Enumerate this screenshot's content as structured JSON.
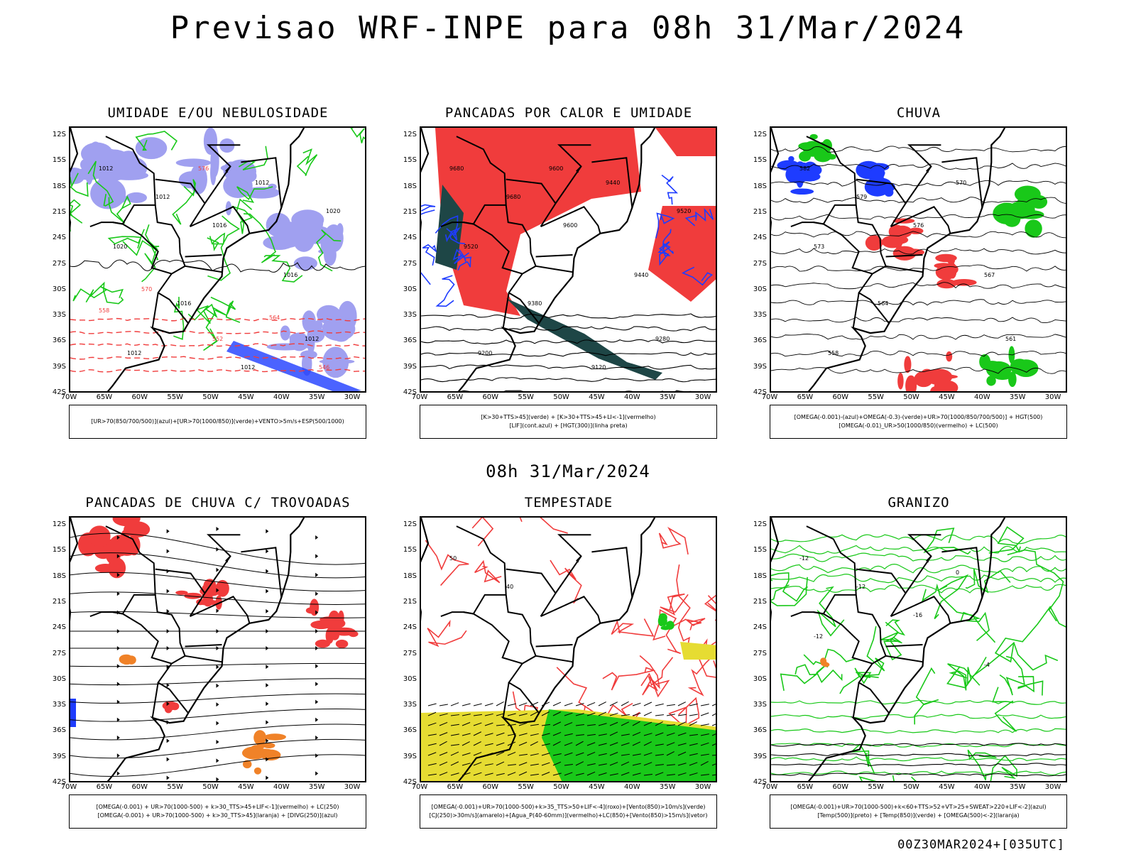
{
  "title": "Previsao WRF-INPE  para 08h 31/Mar/2024",
  "mid_title": "08h 31/Mar/2024",
  "run_stamp": "00Z30MAR2024+[035UTC]",
  "lat_ticks": [
    "12S",
    "15S",
    "18S",
    "21S",
    "24S",
    "27S",
    "30S",
    "33S",
    "36S",
    "39S",
    "42S"
  ],
  "lon_ticks": [
    "70W",
    "65W",
    "60W",
    "55W",
    "50W",
    "45W",
    "40W",
    "35W",
    "30W"
  ],
  "colors": {
    "red": "#f03c3c",
    "green": "#19c819",
    "blue": "#1e3cff",
    "lavender": "#a0a0f0",
    "darkteal": "#1e4646",
    "yellow": "#e6dc32",
    "orange": "#f08228"
  },
  "panels": [
    {
      "key": "umidade",
      "title": "UMIDADE E/OU NEBULOSIDADE",
      "legend": [
        "[UR>70(850/700/500)](azul)+[UR>70(1000/850)](verde)+VENTO>5m/s+ESP(500/1000)"
      ],
      "contour_labels": [
        "1012",
        "1012",
        "1016",
        "1020",
        "1012",
        "1016",
        "1016",
        "1012",
        "1012",
        "1012",
        "1020",
        "576",
        "570",
        "564",
        "558",
        "552",
        "546"
      ]
    },
    {
      "key": "pancadas_calor",
      "title": "PANCADAS POR CALOR E UMIDADE",
      "legend": [
        "[K>30+TTS>45](verde) + [K>30+TTS>45+LI<-1](vermelho)",
        "[LIF](cont.azul) + [HGT(300)](linha preta)"
      ],
      "contour_labels": [
        "9680",
        "9680",
        "9600",
        "9520",
        "9440",
        "9440",
        "9380",
        "9280",
        "9200",
        "9120",
        "9520",
        "9600"
      ]
    },
    {
      "key": "chuva",
      "title": "CHUVA",
      "legend": [
        "[OMEGA(-0.001)-(azul)+OMEGA(-0.3)-(verde)+UR>70(1000/850/700/500)] + HGT(500)",
        "[OMEGA(-0.01)_UR>50(1000/850)(vermelho) + LC(500)"
      ],
      "contour_labels": [
        "582",
        "579",
        "576",
        "573",
        "570",
        "567",
        "564",
        "561",
        "558"
      ]
    },
    {
      "key": "trovoadas",
      "title": "PANCADAS DE CHUVA C/ TROVOADAS",
      "legend": [
        "[OMEGA(-0.001) + UR>70(1000-500) + k>30_TTS>45+LIF<-1](vermelho) + LC(250)",
        "[OMEGA(-0.001) + UR>70(1000-500) + k>30_TTS>45](laranja) + [DIVG(250)](azul)"
      ],
      "contour_labels": []
    },
    {
      "key": "tempestade",
      "title": "TEMPESTADE",
      "legend": [
        "[OMEGA(-0.001)+UR>70(1000-500)+k>35_TTS>50+LIF<-4](roxo)+[Vento(850)>10m/s](verde)",
        "[CJ(250)>30m/s](amarelo)+[Agua_P(40-60mm)](vermelho)+LC(850)+[Vento(850)>15m/s](vetor)"
      ],
      "contour_labels": [
        "50",
        "40"
      ]
    },
    {
      "key": "granizo",
      "title": "GRANIZO",
      "legend": [
        "[OMEGA(-0.001)+UR>70(1000-500)+k<60+TTS>52+VT>25+SWEAT>220+LIF<-2](azul)",
        "[Temp(500)](preto) + [Temp(850)](verde) + [OMEGA(500)<-2](laranja)"
      ],
      "contour_labels": [
        "-12",
        "-12",
        "-16",
        "-12",
        "0",
        "-4"
      ]
    }
  ]
}
